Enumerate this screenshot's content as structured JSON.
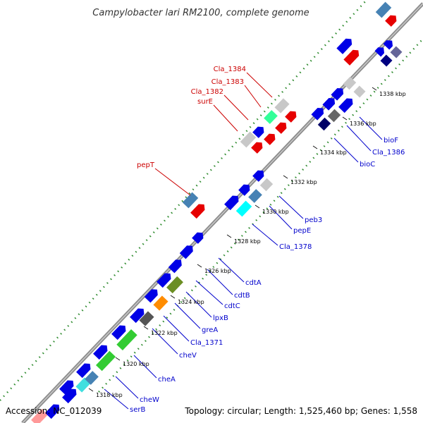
{
  "title": "Campylobacter lari RM2100, complete genome",
  "footer": {
    "accession": "Accession: NC_012039",
    "summary": "Topology: circular; Length: 1,525,460 bp; Genes: 1,558"
  },
  "colors": {
    "forward_gene": "#0000e6",
    "reverse_gene": "#e60000",
    "backbone": "#8c8c8c",
    "gc_dots": "#2e8b2e",
    "label_forward": "#0000cc",
    "label_reverse": "#cc0000"
  },
  "ticks": [
    "1318 kbp",
    "1320 kbp",
    "1322 kbp",
    "1324 kbp",
    "1326 kbp",
    "1328 kbp",
    "1330 kbp",
    "1332 kbp",
    "1334 kbp",
    "1336 kbp",
    "1338 kbp"
  ],
  "labels_reverse": [
    "Cla_1384",
    "Cla_1383",
    "Cla_1382",
    "surE",
    "pepT"
  ],
  "labels_forward": [
    "bioF",
    "Cla_1386",
    "bioC",
    "peb3",
    "pepE",
    "Cla_1378",
    "cdtA",
    "cdtB",
    "cdtC",
    "lpxB",
    "greA",
    "Cla_1371",
    "cheV",
    "cheA",
    "cheW",
    "serB"
  ]
}
